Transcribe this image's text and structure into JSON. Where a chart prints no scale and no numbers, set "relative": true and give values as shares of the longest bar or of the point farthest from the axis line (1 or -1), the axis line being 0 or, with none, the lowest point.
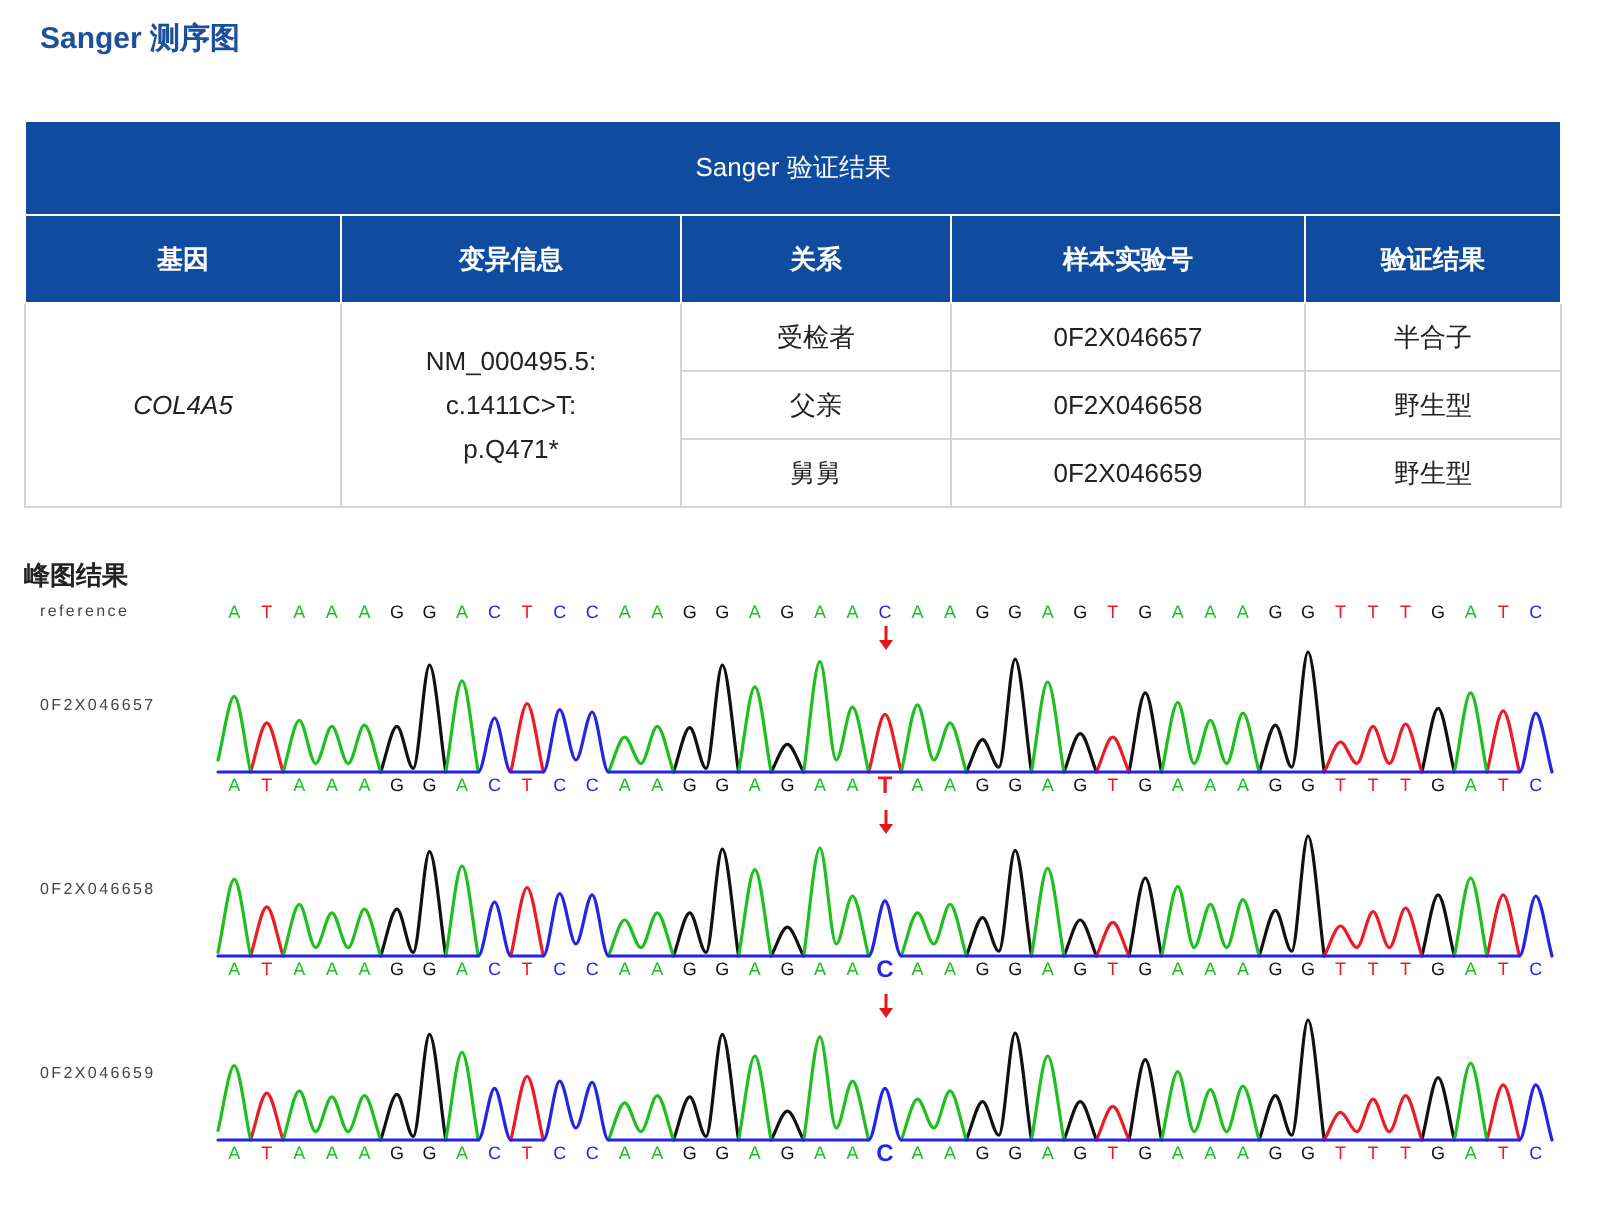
{
  "chart_data": [
    {
      "type": "other",
      "title": "Sanger 测序图",
      "subtitle": "Sanger 验证结果",
      "categories": [
        "基因",
        "变异信息",
        "关系",
        "样本实验号",
        "验证结果"
      ],
      "cell_labels": [
        [
          "COL4A5",
          "NM_000495.5: c.1411C>T: p.Q471*",
          "受检者",
          "0F2X046657",
          "半合子"
        ],
        [
          null,
          null,
          "父亲",
          "0F2X046658",
          "野生型"
        ],
        [
          null,
          null,
          "舅舅",
          "0F2X046659",
          "野生型"
        ]
      ]
    },
    {
      "type": "other",
      "title": "峰图结果",
      "ylabel": "reference",
      "categories": [
        "A",
        "T",
        "A",
        "A",
        "A",
        "G",
        "G",
        "A",
        "C",
        "T",
        "C",
        "C",
        "A",
        "A",
        "G",
        "G",
        "A",
        "G",
        "A",
        "A",
        "C",
        "A",
        "A",
        "G",
        "G",
        "A",
        "G",
        "T",
        "G",
        "A",
        "A",
        "A",
        "G",
        "G",
        "T",
        "T",
        "T",
        "G",
        "A",
        "T",
        "C"
      ],
      "colors": [
        "#1fbf1f",
        "#ee1b24",
        "#1fbf1f",
        "#1fbf1f",
        "#1fbf1f",
        "#111111",
        "#111111",
        "#1fbf1f",
        "#2424e8",
        "#ee1b24",
        "#2424e8",
        "#2424e8",
        "#1fbf1f",
        "#1fbf1f",
        "#111111",
        "#111111",
        "#1fbf1f",
        "#111111",
        "#1fbf1f",
        "#1fbf1f",
        "#2424e8",
        "#1fbf1f",
        "#1fbf1f",
        "#111111",
        "#111111",
        "#1fbf1f",
        "#111111",
        "#ee1b24",
        "#111111",
        "#1fbf1f",
        "#1fbf1f",
        "#1fbf1f",
        "#111111",
        "#111111",
        "#ee1b24",
        "#ee1b24",
        "#ee1b24",
        "#111111",
        "#1fbf1f",
        "#ee1b24",
        "#2424e8"
      ]
    },
    {
      "type": "line",
      "ylabel": "0F2X046657",
      "relative": true,
      "categories": [
        null,
        "A",
        null,
        "T",
        null,
        "A",
        null,
        "A",
        null,
        "A",
        null,
        "G",
        null,
        "G",
        null,
        "A",
        null,
        "C",
        null,
        "T",
        null,
        "C",
        null,
        "C",
        null,
        "A",
        null,
        "A",
        null,
        "G",
        null,
        "G",
        null,
        "A",
        null,
        "G",
        null,
        "A",
        null,
        "A",
        null,
        "T",
        null,
        "A",
        null,
        "A",
        null,
        "G",
        null,
        "G",
        null,
        "A",
        null,
        "G",
        null,
        "T",
        null,
        "G",
        null,
        "A",
        null,
        "A",
        null,
        "A",
        null,
        "G",
        null,
        "G",
        null,
        "T",
        null,
        "T",
        null,
        "T",
        null,
        "G",
        null,
        "A",
        null,
        "T",
        null,
        "C",
        null
      ],
      "series": [
        {
          "color": "#2424e8",
          "values": [
            0,
            0,
            0,
            0,
            0,
            0,
            0,
            0,
            0,
            0,
            0,
            0,
            0,
            0,
            0,
            0,
            0,
            0.45,
            0,
            0,
            0,
            0.52,
            0.1,
            0.5,
            0,
            0,
            0,
            0,
            0,
            0,
            0,
            0,
            0,
            0,
            0,
            0,
            0,
            0,
            0,
            0,
            0,
            0,
            0,
            0,
            0,
            0,
            0,
            0,
            0,
            0,
            0,
            0,
            0,
            0,
            0,
            0,
            0,
            0,
            0,
            0,
            0,
            0,
            0,
            0,
            0,
            0,
            0,
            0,
            0,
            0,
            0,
            0,
            0,
            0,
            0,
            0,
            0,
            0,
            0,
            0,
            0,
            0.49,
            0
          ]
        },
        {
          "color": "#1fbf1f",
          "values": [
            0.1,
            0.63,
            0,
            null,
            0,
            0.43,
            0.07,
            0.38,
            0.07,
            0.39,
            0,
            null,
            null,
            null,
            0,
            0.76,
            0,
            null,
            null,
            null,
            null,
            null,
            null,
            null,
            0,
            0.29,
            0.07,
            0.38,
            0,
            null,
            null,
            null,
            0,
            0.71,
            0,
            null,
            0,
            0.92,
            0.1,
            0.54,
            0,
            null,
            0,
            0.56,
            0.1,
            0.41,
            0,
            null,
            null,
            null,
            0,
            0.75,
            0,
            null,
            null,
            null,
            null,
            null,
            0,
            0.58,
            0.07,
            0.43,
            0.07,
            0.49,
            0,
            null,
            null,
            null,
            null,
            null,
            null,
            null,
            null,
            null,
            null,
            null,
            0,
            0.66,
            0,
            null,
            null,
            null,
            null
          ]
        },
        {
          "color": "#ee1b24",
          "values": [
            null,
            null,
            0,
            0.41,
            0,
            null,
            null,
            null,
            null,
            null,
            null,
            null,
            null,
            null,
            null,
            null,
            null,
            null,
            0,
            0.57,
            0,
            null,
            null,
            null,
            null,
            null,
            null,
            null,
            null,
            null,
            null,
            null,
            null,
            null,
            null,
            null,
            null,
            null,
            null,
            null,
            0,
            0.48,
            0,
            null,
            null,
            null,
            null,
            null,
            null,
            null,
            null,
            null,
            null,
            null,
            0,
            0.29,
            0,
            null,
            null,
            null,
            null,
            null,
            null,
            null,
            null,
            null,
            null,
            null,
            0,
            0.25,
            0.07,
            0.38,
            0.07,
            0.4,
            0,
            null,
            null,
            null,
            0,
            0.51,
            0,
            null,
            null
          ]
        },
        {
          "color": "#111111",
          "values": [
            null,
            null,
            null,
            null,
            null,
            null,
            null,
            null,
            null,
            null,
            0,
            0.38,
            0.03,
            0.89,
            0,
            null,
            null,
            null,
            null,
            null,
            null,
            null,
            null,
            null,
            null,
            null,
            null,
            null,
            0,
            0.37,
            0.03,
            0.89,
            0,
            null,
            0,
            0.23,
            0,
            null,
            null,
            null,
            null,
            null,
            null,
            null,
            null,
            null,
            0,
            0.27,
            0.04,
            0.94,
            0,
            null,
            0,
            0.32,
            0,
            null,
            0,
            0.66,
            0,
            null,
            null,
            null,
            null,
            null,
            0,
            0.39,
            0.04,
            1,
            0,
            null,
            null,
            null,
            null,
            null,
            0,
            0.53,
            0,
            null,
            null,
            null,
            null,
            null,
            null
          ]
        }
      ]
    },
    {
      "type": "line",
      "ylabel": "0F2X046658",
      "relative": true,
      "categories": [
        null,
        "A",
        null,
        "T",
        null,
        "A",
        null,
        "A",
        null,
        "A",
        null,
        "G",
        null,
        "G",
        null,
        "A",
        null,
        "C",
        null,
        "T",
        null,
        "C",
        null,
        "C",
        null,
        "A",
        null,
        "A",
        null,
        "G",
        null,
        "G",
        null,
        "A",
        null,
        "G",
        null,
        "A",
        null,
        "A",
        null,
        "C",
        null,
        "A",
        null,
        "A",
        null,
        "G",
        null,
        "G",
        null,
        "A",
        null,
        "G",
        null,
        "T",
        null,
        "G",
        null,
        "A",
        null,
        "A",
        null,
        "A",
        null,
        "G",
        null,
        "G",
        null,
        "T",
        null,
        "T",
        null,
        "T",
        null,
        "G",
        null,
        "A",
        null,
        "T",
        null,
        "C",
        null
      ],
      "series": [
        {
          "color": "#2424e8",
          "values": [
            0,
            0,
            0,
            0,
            0,
            0,
            0,
            0,
            0,
            0,
            0,
            0,
            0,
            0,
            0,
            0,
            0,
            0.45,
            0,
            0,
            0,
            0.52,
            0.1,
            0.51,
            0,
            0,
            0,
            0,
            0,
            0,
            0,
            0,
            0,
            0,
            0,
            0,
            0,
            0,
            0,
            0,
            0,
            0.46,
            0,
            0,
            0,
            0,
            0,
            0,
            0,
            0,
            0,
            0,
            0,
            0,
            0,
            0,
            0,
            0,
            0,
            0,
            0,
            0,
            0,
            0,
            0,
            0,
            0,
            0,
            0,
            0,
            0,
            0,
            0,
            0,
            0,
            0,
            0,
            0,
            0,
            0,
            0,
            0.5,
            0
          ]
        },
        {
          "color": "#1fbf1f",
          "values": [
            0.03,
            0.64,
            0,
            null,
            0,
            0.43,
            0.07,
            0.36,
            0.07,
            0.39,
            0,
            null,
            null,
            null,
            0,
            0.75,
            0,
            null,
            null,
            null,
            null,
            null,
            null,
            null,
            0,
            0.3,
            0.07,
            0.36,
            0,
            null,
            null,
            null,
            0,
            0.72,
            0,
            null,
            0,
            0.9,
            0.1,
            0.5,
            0,
            null,
            0,
            0.36,
            0.1,
            0.43,
            0,
            null,
            null,
            null,
            0,
            0.73,
            0,
            null,
            null,
            null,
            null,
            null,
            0,
            0.58,
            0.07,
            0.43,
            0.07,
            0.47,
            0,
            null,
            null,
            null,
            null,
            null,
            null,
            null,
            null,
            null,
            null,
            null,
            0,
            0.65,
            0,
            null,
            null,
            null,
            null
          ]
        },
        {
          "color": "#ee1b24",
          "values": [
            null,
            null,
            0,
            0.41,
            0,
            null,
            null,
            null,
            null,
            null,
            null,
            null,
            null,
            null,
            null,
            null,
            null,
            null,
            0,
            0.57,
            0,
            null,
            null,
            null,
            null,
            null,
            null,
            null,
            null,
            null,
            null,
            null,
            null,
            null,
            null,
            null,
            null,
            null,
            null,
            null,
            null,
            null,
            null,
            null,
            null,
            null,
            null,
            null,
            null,
            null,
            null,
            null,
            null,
            null,
            0,
            0.28,
            0,
            null,
            null,
            null,
            null,
            null,
            null,
            null,
            null,
            null,
            null,
            null,
            0,
            0.25,
            0.07,
            0.37,
            0.07,
            0.4,
            0,
            null,
            null,
            null,
            0,
            0.51,
            0,
            null,
            null
          ]
        },
        {
          "color": "#111111",
          "values": [
            null,
            null,
            null,
            null,
            null,
            null,
            null,
            null,
            null,
            null,
            0,
            0.39,
            0.03,
            0.87,
            0,
            null,
            null,
            null,
            null,
            null,
            null,
            null,
            null,
            null,
            null,
            null,
            null,
            null,
            0,
            0.36,
            0.03,
            0.89,
            0,
            null,
            0,
            0.24,
            0,
            null,
            null,
            null,
            null,
            null,
            null,
            null,
            null,
            null,
            0,
            0.32,
            0.04,
            0.88,
            0,
            null,
            0,
            0.3,
            0,
            null,
            0,
            0.65,
            0,
            null,
            null,
            null,
            null,
            null,
            0,
            0.38,
            0.04,
            1,
            0,
            null,
            null,
            null,
            null,
            null,
            0,
            0.51,
            0,
            null,
            null,
            null,
            null,
            null,
            null
          ]
        }
      ]
    },
    {
      "type": "line",
      "ylabel": "0F2X046659",
      "relative": true,
      "categories": [
        null,
        "A",
        null,
        "T",
        null,
        "A",
        null,
        "A",
        null,
        "A",
        null,
        "G",
        null,
        "G",
        null,
        "A",
        null,
        "C",
        null,
        "T",
        null,
        "C",
        null,
        "C",
        null,
        "A",
        null,
        "A",
        null,
        "G",
        null,
        "G",
        null,
        "A",
        null,
        "G",
        null,
        "A",
        null,
        "A",
        null,
        "C",
        null,
        "A",
        null,
        "A",
        null,
        "G",
        null,
        "G",
        null,
        "A",
        null,
        "G",
        null,
        "T",
        null,
        "G",
        null,
        "A",
        null,
        "A",
        null,
        "A",
        null,
        "G",
        null,
        "G",
        null,
        "T",
        null,
        "T",
        null,
        "T",
        null,
        "G",
        null,
        "A",
        null,
        "T",
        null,
        "C",
        null
      ],
      "series": [
        {
          "color": "#2424e8",
          "values": [
            0,
            0,
            0,
            0,
            0,
            0,
            0,
            0,
            0,
            0,
            0,
            0,
            0,
            0,
            0,
            0,
            0,
            0.43,
            0,
            0,
            0,
            0.49,
            0.1,
            0.48,
            0,
            0,
            0,
            0,
            0,
            0,
            0,
            0,
            0,
            0,
            0,
            0,
            0,
            0,
            0,
            0,
            0,
            0.43,
            0,
            0,
            0,
            0,
            0,
            0,
            0,
            0,
            0,
            0,
            0,
            0,
            0,
            0,
            0,
            0,
            0,
            0,
            0,
            0,
            0,
            0,
            0,
            0,
            0,
            0,
            0,
            0,
            0,
            0,
            0,
            0,
            0,
            0,
            0,
            0,
            0,
            0,
            0,
            0.46,
            0
          ]
        },
        {
          "color": "#1fbf1f",
          "values": [
            0.08,
            0.62,
            0,
            null,
            0,
            0.41,
            0.07,
            0.36,
            0.07,
            0.37,
            0,
            null,
            null,
            null,
            0,
            0.73,
            0,
            null,
            null,
            null,
            null,
            null,
            null,
            null,
            0,
            0.31,
            0.07,
            0.37,
            0,
            null,
            null,
            null,
            0,
            0.7,
            0,
            null,
            0,
            0.86,
            0.1,
            0.49,
            0,
            null,
            0,
            0.34,
            0.1,
            0.41,
            0,
            null,
            null,
            null,
            0,
            0.7,
            0,
            null,
            null,
            null,
            null,
            null,
            0,
            0.57,
            0.07,
            0.42,
            0.07,
            0.45,
            0,
            null,
            null,
            null,
            null,
            null,
            null,
            null,
            null,
            null,
            null,
            null,
            0,
            0.64,
            0,
            null,
            null,
            null,
            null
          ]
        },
        {
          "color": "#ee1b24",
          "values": [
            null,
            null,
            0,
            0.39,
            0,
            null,
            null,
            null,
            null,
            null,
            null,
            null,
            null,
            null,
            null,
            null,
            null,
            null,
            0,
            0.53,
            0,
            null,
            null,
            null,
            null,
            null,
            null,
            null,
            null,
            null,
            null,
            null,
            null,
            null,
            null,
            null,
            null,
            null,
            null,
            null,
            null,
            null,
            null,
            null,
            null,
            null,
            null,
            null,
            null,
            null,
            null,
            null,
            null,
            null,
            0,
            0.28,
            0,
            null,
            null,
            null,
            null,
            null,
            null,
            null,
            null,
            null,
            null,
            null,
            0,
            0.23,
            0.07,
            0.34,
            0.07,
            0.37,
            0,
            null,
            null,
            null,
            0,
            0.46,
            0,
            null,
            null
          ]
        },
        {
          "color": "#111111",
          "values": [
            null,
            null,
            null,
            null,
            null,
            null,
            null,
            null,
            null,
            null,
            0,
            0.38,
            0.03,
            0.88,
            0,
            null,
            null,
            null,
            null,
            null,
            null,
            null,
            null,
            null,
            null,
            null,
            null,
            null,
            0,
            0.36,
            0.03,
            0.88,
            0,
            null,
            0,
            0.24,
            0,
            null,
            null,
            null,
            null,
            null,
            null,
            null,
            null,
            null,
            0,
            0.32,
            0.04,
            0.89,
            0,
            null,
            0,
            0.32,
            0,
            null,
            0,
            0.67,
            0,
            null,
            null,
            null,
            null,
            null,
            0,
            0.37,
            0.04,
            1,
            0,
            null,
            null,
            null,
            null,
            null,
            0,
            0.52,
            0,
            null,
            null,
            null,
            null,
            null,
            null
          ]
        }
      ]
    }
  ]
}
